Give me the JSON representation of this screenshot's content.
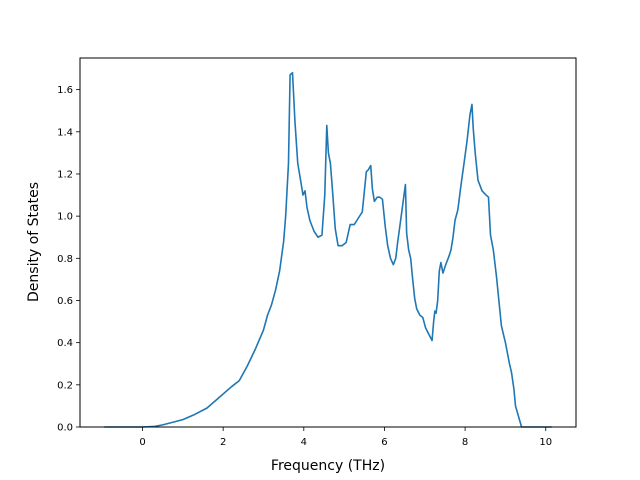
{
  "chart_data": {
    "type": "line",
    "xlabel": "Frequency (THz)",
    "ylabel": "Density of States",
    "xlim": [
      -1.55,
      10.75
    ],
    "ylim": [
      0.0,
      1.75
    ],
    "xticks": [
      0,
      2,
      4,
      6,
      8,
      10
    ],
    "yticks": [
      0.0,
      0.2,
      0.4,
      0.6,
      0.8,
      1.0,
      1.2,
      1.4,
      1.6
    ],
    "xtick_labels": [
      "0",
      "2",
      "4",
      "6",
      "8",
      "10"
    ],
    "ytick_labels": [
      "0.0",
      "0.2",
      "0.4",
      "0.6",
      "0.8",
      "1.0",
      "1.2",
      "1.4",
      "1.6"
    ],
    "grid": false,
    "line_color": "#1f77b4",
    "series": [
      {
        "x": [
          -0.95,
          -0.5,
          0.0,
          0.3,
          0.5,
          0.8,
          1.0,
          1.3,
          1.6,
          1.9,
          2.2,
          2.4,
          2.6,
          2.8,
          3.0,
          3.1,
          3.2,
          3.3,
          3.4,
          3.5,
          3.55,
          3.62,
          3.66,
          3.72,
          3.78,
          3.85,
          3.92,
          3.98,
          4.03,
          4.08,
          4.15,
          4.25,
          4.35,
          4.45,
          4.52,
          4.57,
          4.61,
          4.66,
          4.72,
          4.78,
          4.85,
          4.95,
          5.05,
          5.15,
          5.25,
          5.35,
          5.45,
          5.55,
          5.6,
          5.66,
          5.7,
          5.75,
          5.82,
          5.88,
          5.95,
          6.02,
          6.08,
          6.15,
          6.22,
          6.28,
          6.33,
          6.38,
          6.45,
          6.52,
          6.55,
          6.6,
          6.65,
          6.7,
          6.75,
          6.8,
          6.88,
          6.95,
          7.02,
          7.1,
          7.18,
          7.22,
          7.25,
          7.28,
          7.32,
          7.36,
          7.4,
          7.45,
          7.52,
          7.6,
          7.65,
          7.7,
          7.75,
          7.82,
          7.9,
          7.98,
          8.05,
          8.12,
          8.17,
          8.2,
          8.25,
          8.32,
          8.42,
          8.52,
          8.58,
          8.63,
          8.7,
          8.78,
          8.9,
          9.0,
          9.1,
          9.15,
          9.18,
          9.21,
          9.25,
          9.4,
          9.6,
          9.8,
          10.15
        ],
        "y": [
          0.0,
          0.0,
          0.0,
          0.003,
          0.01,
          0.025,
          0.035,
          0.06,
          0.09,
          0.14,
          0.19,
          0.22,
          0.29,
          0.37,
          0.46,
          0.53,
          0.58,
          0.65,
          0.74,
          0.88,
          1.0,
          1.25,
          1.67,
          1.68,
          1.45,
          1.25,
          1.17,
          1.1,
          1.12,
          1.04,
          0.98,
          0.93,
          0.9,
          0.91,
          1.1,
          1.43,
          1.3,
          1.25,
          1.1,
          0.94,
          0.86,
          0.86,
          0.875,
          0.96,
          0.96,
          0.99,
          1.02,
          1.21,
          1.22,
          1.24,
          1.13,
          1.07,
          1.09,
          1.09,
          1.08,
          0.95,
          0.86,
          0.8,
          0.77,
          0.8,
          0.88,
          0.95,
          1.05,
          1.15,
          0.92,
          0.84,
          0.8,
          0.7,
          0.61,
          0.56,
          0.53,
          0.52,
          0.47,
          0.44,
          0.41,
          0.5,
          0.55,
          0.54,
          0.6,
          0.74,
          0.78,
          0.73,
          0.77,
          0.81,
          0.84,
          0.9,
          0.98,
          1.03,
          1.15,
          1.26,
          1.36,
          1.48,
          1.53,
          1.42,
          1.3,
          1.17,
          1.12,
          1.1,
          1.09,
          0.91,
          0.84,
          0.71,
          0.48,
          0.4,
          0.3,
          0.26,
          0.22,
          0.18,
          0.1,
          0.0,
          0.0,
          0.0,
          0.0
        ]
      }
    ]
  }
}
